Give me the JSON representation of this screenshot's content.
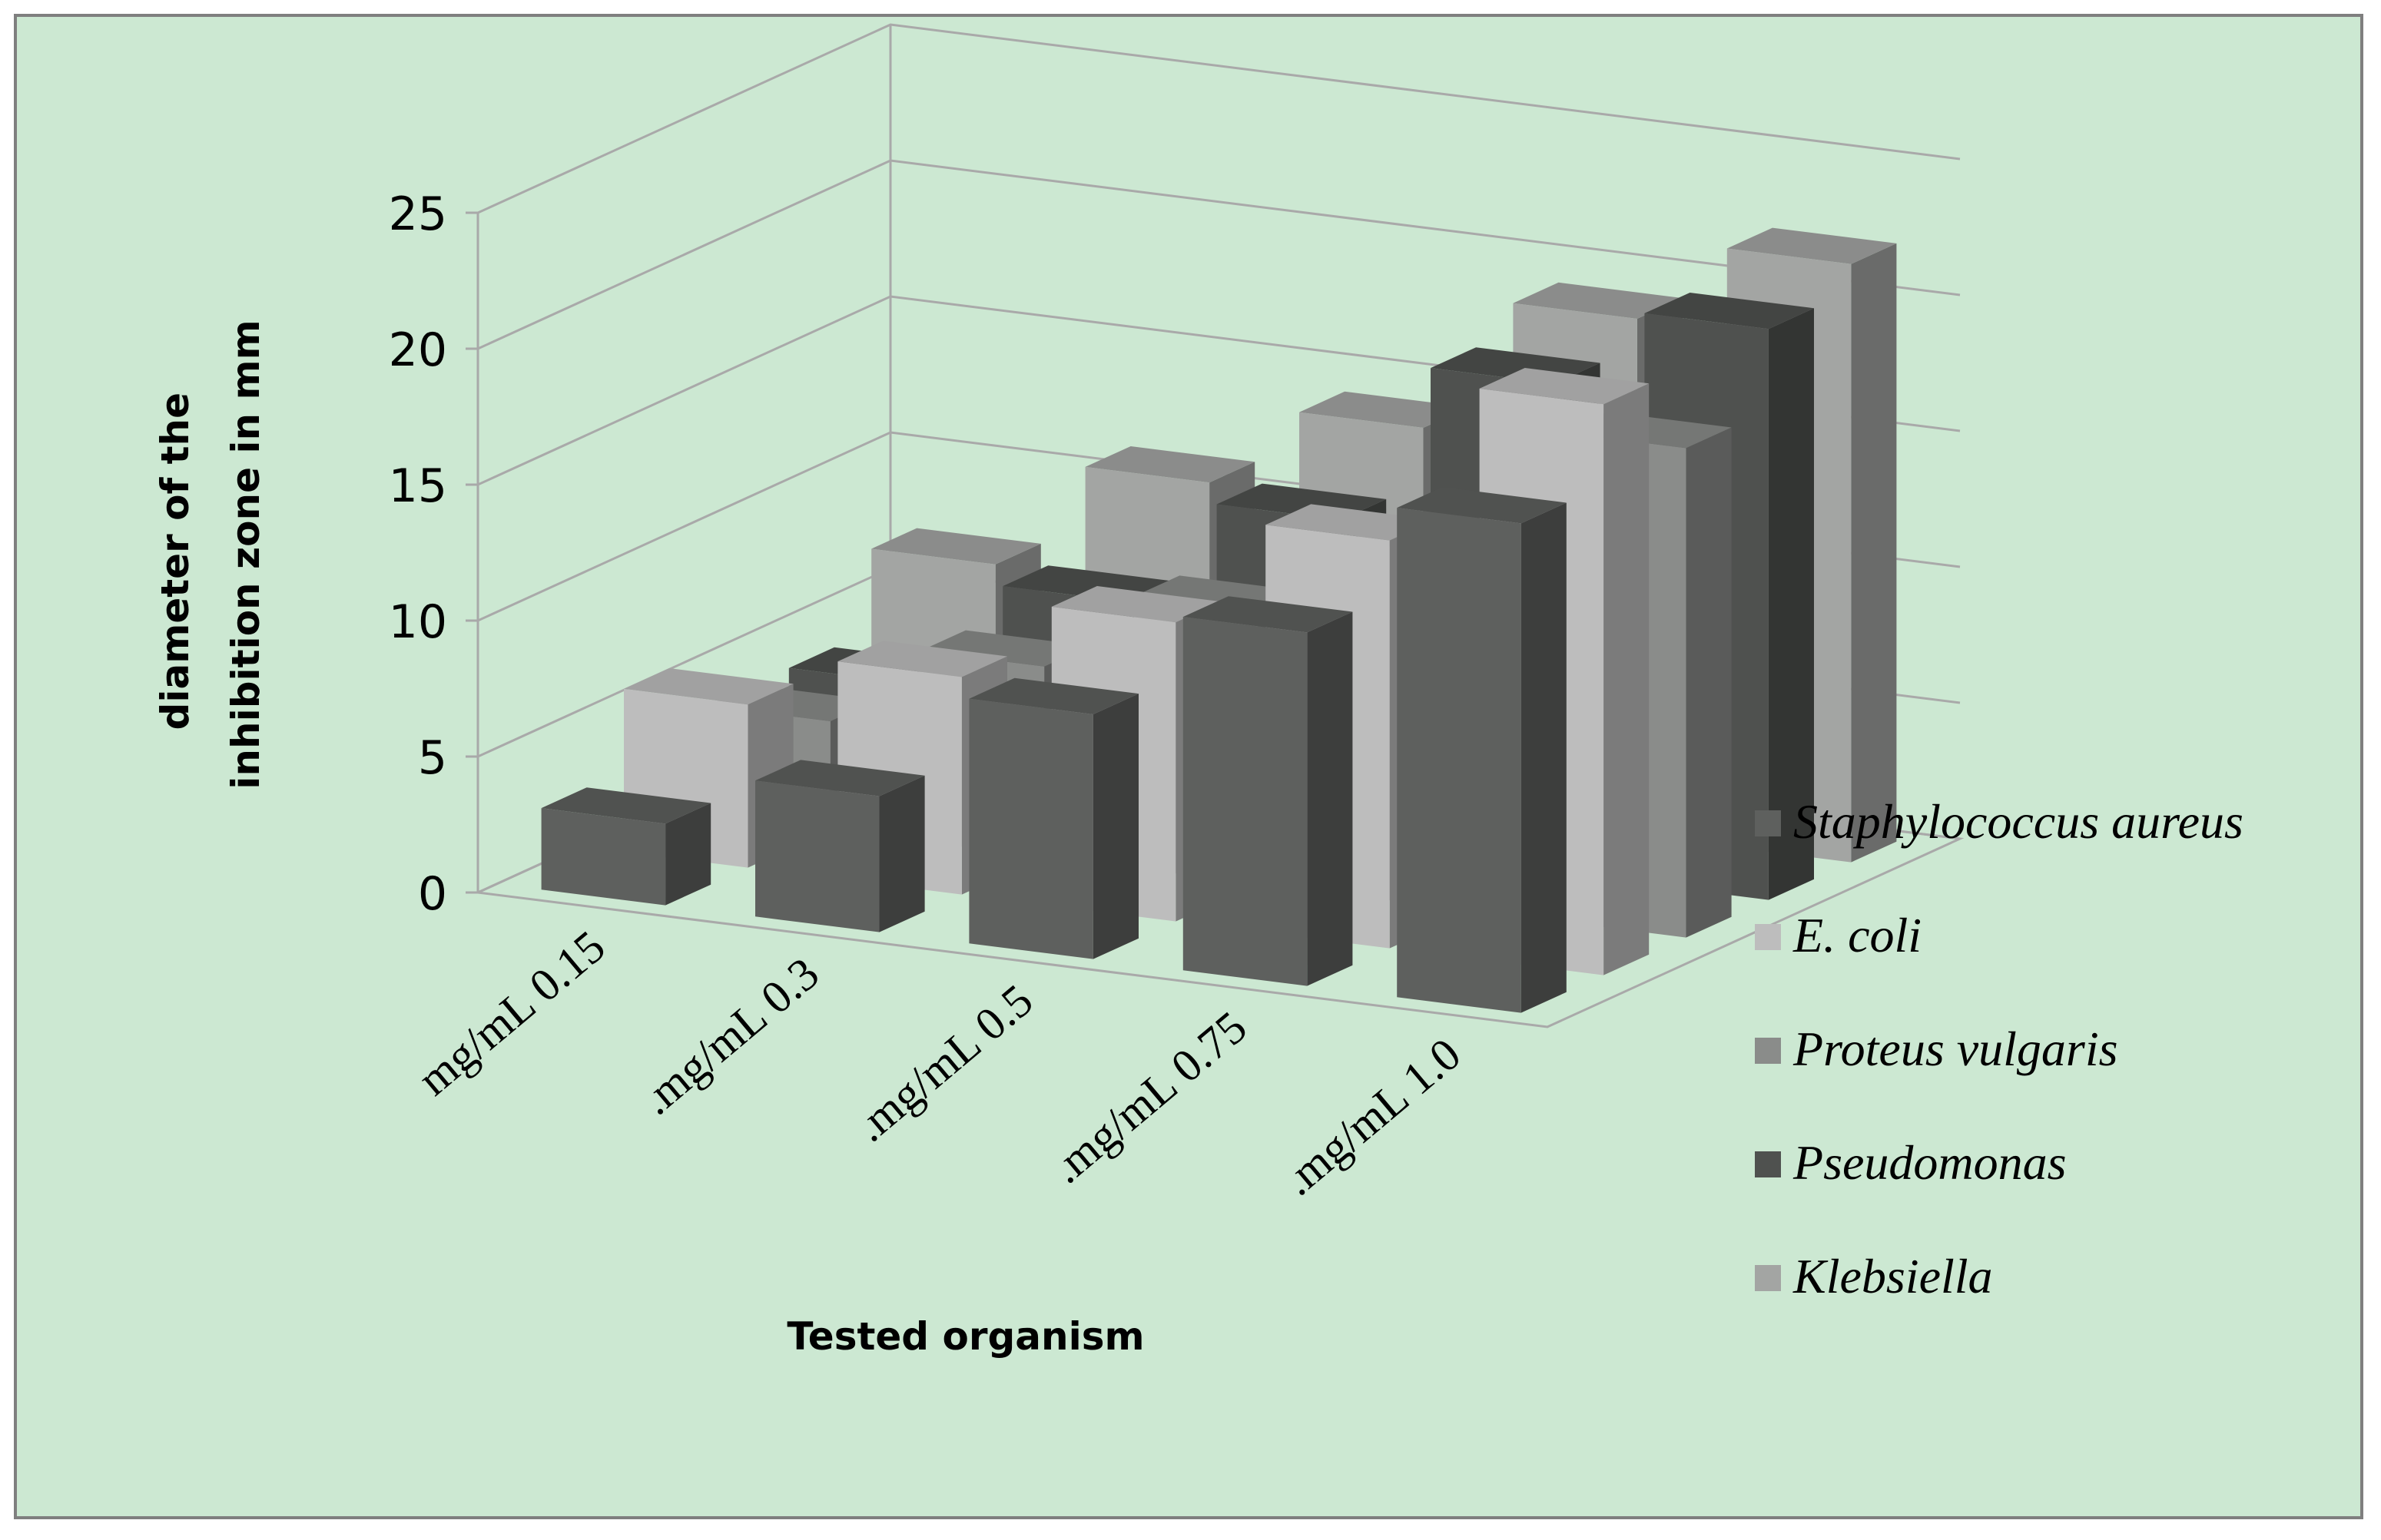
{
  "chart_data": {
    "type": "bar",
    "subtype": "3d-clustered-columns",
    "title": "",
    "xlabel": "Tested organism",
    "ylabel_lines": [
      "diameter of the",
      "inhibition zone in mm"
    ],
    "ylim": [
      0,
      25
    ],
    "yticks": [
      0,
      5,
      10,
      15,
      20,
      25
    ],
    "grid": true,
    "legend_position": "right",
    "categories": [
      "mg/mL 0.15",
      ".mg/mL 0.3",
      ".mg/mL 0.5",
      ".mg/mL 0.75",
      ".mg/mL 1.0"
    ],
    "series": [
      {
        "name": "Staphylococcus aureus",
        "color": "#5e605e",
        "values": [
          3,
          5,
          9,
          13,
          18
        ]
      },
      {
        "name": "E. coli",
        "color": "#bdbdbd",
        "values": [
          6,
          8,
          11,
          15,
          21
        ]
      },
      {
        "name": "Proteus vulgaris",
        "color": "#8a8c8a",
        "values": [
          4,
          7,
          10,
          13,
          18
        ]
      },
      {
        "name": "Pseudomonas",
        "color": "#4f514f",
        "values": [
          4,
          8,
          12,
          18,
          21
        ]
      },
      {
        "name": "Klebsiella",
        "color": "#a3a5a3",
        "values": [
          7,
          11,
          14,
          19,
          22
        ]
      }
    ]
  }
}
